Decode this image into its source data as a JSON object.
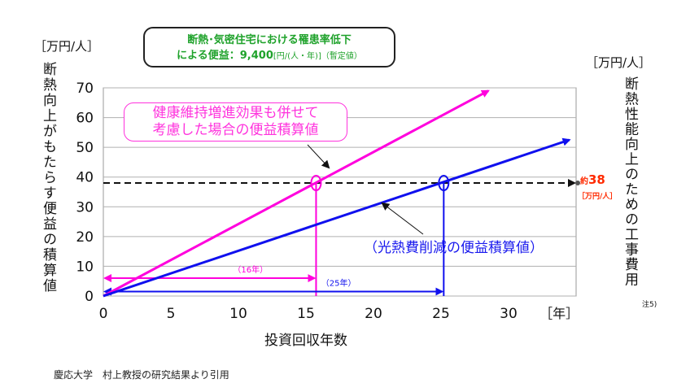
{
  "chart_data": {
    "type": "line",
    "xlabel": "投資回収年数",
    "xunit": "［年］",
    "ylabel_left": "断熱向上がもたらす便益の積算値",
    "yunit_left": "［万円/人］",
    "ylabel_right": "断熱性能向上のための工事費用",
    "yunit_right": "［万円/人］",
    "right_note": "注5)",
    "xlim": [
      0,
      35
    ],
    "ylim": [
      0,
      70
    ],
    "x_ticks": [
      0,
      5,
      10,
      15,
      20,
      25,
      30
    ],
    "y_ticks": [
      0,
      10,
      20,
      30,
      40,
      50,
      60,
      70
    ],
    "series": [
      {
        "name": "健康維持増進効果も併せて考慮した場合の便益積算値",
        "color": "#ff00dd",
        "x": [
          0,
          28.5
        ],
        "y": [
          0,
          69
        ]
      },
      {
        "name": "（光熱費削減の便益積算値）",
        "color": "#1010ee",
        "x": [
          0,
          34.5
        ],
        "y": [
          0,
          52.5
        ]
      }
    ],
    "cost_line": {
      "value": 38,
      "approx_prefix": "約",
      "label": "38",
      "unit": "［万円/人］",
      "color": "#111111"
    },
    "payback": [
      {
        "x": 15.75,
        "label": "（16年）",
        "color": "#ff00dd"
      },
      {
        "x": 25.2,
        "label": "（25年）",
        "color": "#1010ee"
      }
    ],
    "callout": {
      "line1": "断熱･気密住宅における罹患率低下",
      "line2": "による便益：9,400",
      "line2_unit": "[円/(人・年)]",
      "line2_note": "（暫定値）"
    },
    "pink_label_line1": "健康維持増進効果も併せて",
    "pink_label_line2": "考慮した場合の便益積算値",
    "blue_label": "（光熱費削減の便益積算値）"
  },
  "source": "慶応大学　村上教授の研究結果より引用",
  "colors": {
    "pink": "#ff00dd",
    "blue": "#1010ee",
    "callout_text": "#1fa22b",
    "cost_text": "#ff2a00"
  }
}
